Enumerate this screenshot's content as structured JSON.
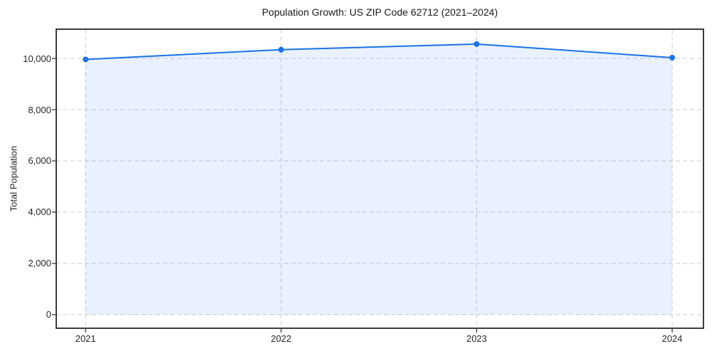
{
  "figure": {
    "background": "#ffffff"
  },
  "chart_data": {
    "type": "area",
    "title": "Population Growth: US ZIP Code 62712 (2021–2024)",
    "xlabel": "",
    "ylabel": "Total Population",
    "categories": [
      "2021",
      "2022",
      "2023",
      "2024"
    ],
    "x": [
      2021,
      2022,
      2023,
      2024
    ],
    "series": [
      {
        "name": "Total Population",
        "values": [
          9960,
          10340,
          10560,
          10030
        ]
      }
    ],
    "xlim": [
      2020.85,
      2024.16
    ],
    "ylim": [
      -530,
      11140
    ],
    "xticks": [
      {
        "value": 2021,
        "label": "2021"
      },
      {
        "value": 2022,
        "label": "2022"
      },
      {
        "value": 2023,
        "label": "2023"
      },
      {
        "value": 2024,
        "label": "2024"
      }
    ],
    "yticks": [
      {
        "value": 0,
        "label": "0"
      },
      {
        "value": 2000,
        "label": "2,000"
      },
      {
        "value": 4000,
        "label": "4,000"
      },
      {
        "value": 6000,
        "label": "6,000"
      },
      {
        "value": 8000,
        "label": "8,000"
      },
      {
        "value": 10000,
        "label": "10,000"
      }
    ],
    "grid": true,
    "grid_style": "dashed",
    "legend_position": "none",
    "colors": {
      "line": "#1a73e8",
      "marker": "#1a73e8",
      "fill": "rgba(26,115,232,0.10)",
      "grid": "#cccccc",
      "spine": "#262626",
      "text": "#262626",
      "title_text": "#1a1a1a",
      "background": "#ffffff"
    },
    "marker_radius": 4,
    "line_width": 2
  }
}
